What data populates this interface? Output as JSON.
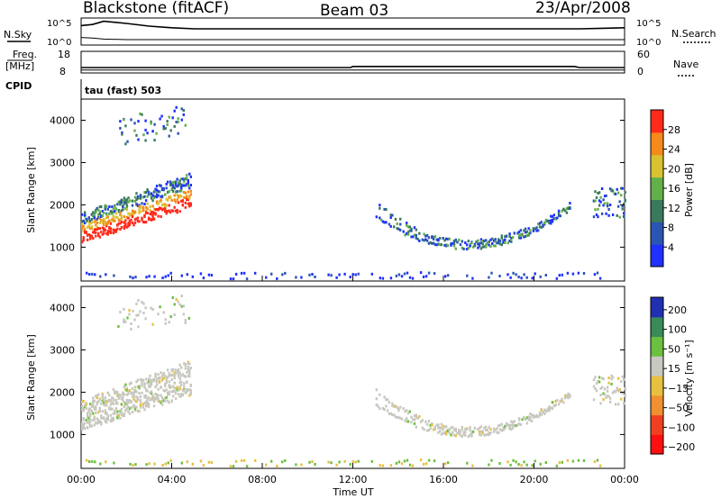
{
  "header": {
    "title": "Blackstone (fitACF)",
    "beam": "Beam 03",
    "date": "23/Apr/2008"
  },
  "chart_data": [
    {
      "type": "line",
      "panel": "nsky-nsearch",
      "left_label": "N.Sky",
      "right_label": "N.Search",
      "left_ticks": [
        "10^5",
        "10^0"
      ],
      "right_ticks": [
        "10^5",
        "10^0"
      ],
      "x": [
        0,
        0.5,
        1,
        2,
        3,
        4,
        5,
        6,
        8,
        10,
        12,
        14,
        16,
        18,
        20,
        22,
        23,
        24
      ],
      "series": [
        {
          "values": [
            3.6,
            3.8,
            4.4,
            4.0,
            3.5,
            3.2,
            3.0,
            3.0,
            3.0,
            3.0,
            3.0,
            3.0,
            3.0,
            3.0,
            3.0,
            3.0,
            3.1,
            3.2
          ]
        },
        {
          "values": [
            1.4,
            1.3,
            1.1,
            1.0,
            1.0,
            1.0,
            1.0,
            1.0,
            1.0,
            1.0,
            1.0,
            1.0,
            1.0,
            1.0,
            1.0,
            1.0,
            1.0,
            1.0
          ]
        }
      ]
    },
    {
      "type": "line",
      "panel": "freq-nave",
      "left_label": "Freq.",
      "left_unit": "[MHz]",
      "right_label": "Nave",
      "left_ticks": [
        "18",
        "8"
      ],
      "right_ticks": [
        "60",
        "0"
      ],
      "x": [
        0,
        4,
        8,
        11.9,
        12,
        16,
        21.8,
        22,
        24
      ],
      "series": [
        {
          "values": [
            10.5,
            10.5,
            10.5,
            10.5,
            11.0,
            11.0,
            11.0,
            10.5,
            10.5
          ]
        },
        {
          "values": [
            8,
            8,
            8,
            8,
            8,
            8,
            8,
            8,
            8
          ]
        }
      ]
    },
    {
      "type": "heatmap",
      "panel": "power",
      "cpid_label": "CPID",
      "cpid_value": "tau (fast) 503",
      "ylabel": "Slant Range [km]",
      "xlim": [
        0,
        24
      ],
      "ylim": [
        200,
        4500
      ],
      "yticks": [
        "1000",
        "2000",
        "3000",
        "4000"
      ],
      "colorbar_label": "Power [dB]",
      "colorbar_ticks": [
        "4",
        "8",
        "12",
        "16",
        "20",
        "24",
        "28"
      ],
      "colorbar_range": [
        0,
        32
      ],
      "colors": [
        "#1f30ff",
        "#2b55b3",
        "#3a7a5c",
        "#62b04a",
        "#d9c230",
        "#f58a1a",
        "#ff2a1a"
      ]
    },
    {
      "type": "heatmap",
      "panel": "velocity",
      "ylabel": "Slant Range [km]",
      "xlabel": "Time UT",
      "xlim": [
        0,
        24
      ],
      "ylim": [
        200,
        4500
      ],
      "yticks": [
        "1000",
        "2000",
        "3000",
        "4000"
      ],
      "xticks": [
        "00:00",
        "04:00",
        "08:00",
        "12:00",
        "16:00",
        "20:00",
        "00:00"
      ],
      "colorbar_label": "Velocity [m s⁻¹]",
      "colorbar_ticks": [
        "200",
        "100",
        "50",
        "15",
        "−15",
        "−50",
        "−100",
        "−200"
      ],
      "colors": [
        "#2030b0",
        "#3a8a5a",
        "#6cc040",
        "#c8c8c0",
        "#e8c040",
        "#f09030",
        "#f04020",
        "#ff1010"
      ]
    }
  ]
}
